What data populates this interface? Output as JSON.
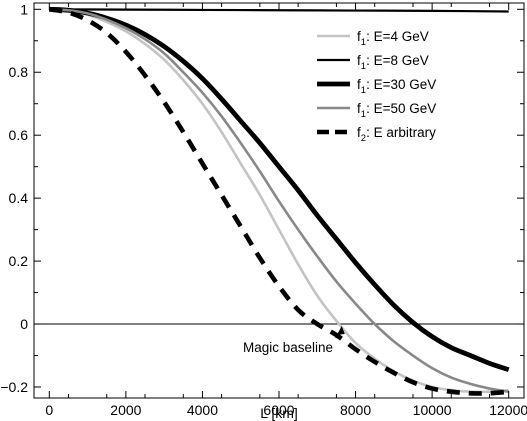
{
  "chart_data": {
    "type": "line",
    "title": "",
    "xlabel": "L [km]",
    "ylabel": "",
    "xlim": [
      -400,
      12400
    ],
    "ylim": [
      -0.235,
      1.02
    ],
    "x_ticks": [
      0,
      2000,
      4000,
      6000,
      8000,
      10000,
      12000
    ],
    "y_ticks": [
      -0.2,
      0,
      0.2,
      0.4,
      0.6,
      0.8,
      1
    ],
    "x_tick_labels": [
      "0",
      "2000",
      "4000",
      "6000",
      "8000",
      "10000",
      "12000"
    ],
    "y_tick_labels": [
      "−0.2",
      "0",
      "0.2",
      "0.4",
      "0.6",
      "0.8",
      "1"
    ],
    "grid": false,
    "legend_position": "top-right",
    "zero_line": true,
    "series": [
      {
        "sub": "1",
        "rest": ": E=4 GeV",
        "color": "#c4c4c4",
        "style": "solid",
        "width": 2.6,
        "x": [
          0,
          500,
          1000,
          1500,
          2000,
          2500,
          3000,
          3500,
          4000,
          4500,
          5000,
          5500,
          6000,
          6500,
          7000,
          7500,
          8000,
          8500,
          9000,
          9500,
          10000,
          10500,
          11000,
          11500,
          12000
        ],
        "y": [
          1.0,
          0.996,
          0.983,
          0.96,
          0.93,
          0.89,
          0.84,
          0.775,
          0.7,
          0.61,
          0.51,
          0.41,
          0.3,
          0.19,
          0.09,
          0.01,
          -0.06,
          -0.11,
          -0.15,
          -0.18,
          -0.2,
          -0.21,
          -0.215,
          -0.215,
          -0.21
        ]
      },
      {
        "sub": "1",
        "rest": ": E=8 GeV",
        "color": "#000000",
        "style": "solid",
        "width": 2.2,
        "x": [
          0,
          2000,
          4000,
          6000,
          8000,
          10000,
          12000
        ],
        "y": [
          1.0,
          0.999,
          0.998,
          0.997,
          0.996,
          0.995,
          0.993
        ]
      },
      {
        "sub": "1",
        "rest": ": E=30 GeV",
        "color": "#000000",
        "style": "solid",
        "width": 4.8,
        "x": [
          0,
          500,
          1000,
          1500,
          2000,
          2500,
          3000,
          3500,
          4000,
          4500,
          5000,
          5500,
          6000,
          6500,
          7000,
          7500,
          8000,
          8500,
          9000,
          9500,
          10000,
          10500,
          11000,
          11500,
          12000
        ],
        "y": [
          1.0,
          0.997,
          0.988,
          0.972,
          0.95,
          0.92,
          0.882,
          0.835,
          0.78,
          0.715,
          0.645,
          0.575,
          0.5,
          0.425,
          0.345,
          0.27,
          0.195,
          0.125,
          0.06,
          0.005,
          -0.04,
          -0.075,
          -0.1,
          -0.125,
          -0.145
        ]
      },
      {
        "sub": "1",
        "rest": ": E=50 GeV",
        "color": "#888888",
        "style": "solid",
        "width": 2.6,
        "x": [
          0,
          500,
          1000,
          1500,
          2000,
          2500,
          3000,
          3500,
          4000,
          4500,
          5000,
          5500,
          6000,
          6500,
          7000,
          7500,
          8000,
          8500,
          9000,
          9500,
          10000,
          10500,
          11000,
          11500,
          12000
        ],
        "y": [
          1.0,
          0.997,
          0.987,
          0.967,
          0.94,
          0.905,
          0.86,
          0.8,
          0.735,
          0.66,
          0.575,
          0.485,
          0.39,
          0.3,
          0.215,
          0.135,
          0.065,
          0.0,
          -0.055,
          -0.1,
          -0.14,
          -0.17,
          -0.19,
          -0.205,
          -0.215
        ]
      },
      {
        "sub": "2",
        "rest": ": E arbitrary",
        "color": "#000000",
        "style": "dashed",
        "width": 4.6,
        "x": [
          0,
          500,
          1000,
          1500,
          2000,
          2500,
          3000,
          3500,
          4000,
          4500,
          5000,
          5500,
          6000,
          6500,
          7000,
          7500,
          8000,
          8500,
          9000,
          9500,
          10000,
          10500,
          11000,
          11500,
          12000
        ],
        "y": [
          1.0,
          0.99,
          0.965,
          0.925,
          0.865,
          0.79,
          0.705,
          0.61,
          0.51,
          0.41,
          0.31,
          0.21,
          0.12,
          0.045,
          0.0,
          -0.035,
          -0.08,
          -0.12,
          -0.155,
          -0.185,
          -0.205,
          -0.215,
          -0.22,
          -0.22,
          -0.215
        ]
      }
    ],
    "annotations": [
      {
        "text": "Magic baseline",
        "arrow_to": [
          7640,
          0.0
        ]
      }
    ]
  },
  "legend_prefix": "f"
}
